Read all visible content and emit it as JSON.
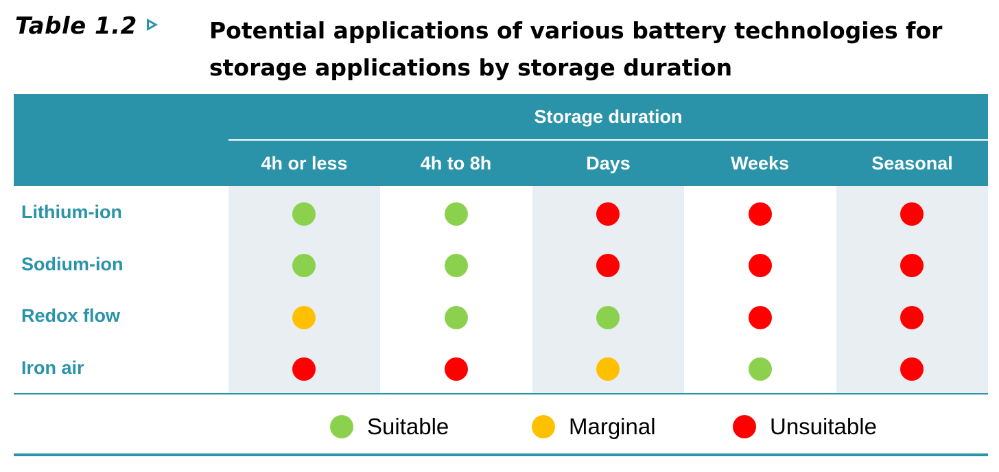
{
  "table_label": "Table 1.2",
  "title": "Potential applications of various battery technologies for storage applications by storage duration",
  "header": {
    "group": "Storage duration",
    "columns": [
      "4h or less",
      "4h to 8h",
      "Days",
      "Weeks",
      "Seasonal"
    ]
  },
  "rows": [
    {
      "label": "Lithium-ion",
      "ratings": [
        "Suitable",
        "Suitable",
        "Unsuitable",
        "Unsuitable",
        "Unsuitable"
      ]
    },
    {
      "label": "Sodium-ion",
      "ratings": [
        "Suitable",
        "Suitable",
        "Unsuitable",
        "Unsuitable",
        "Unsuitable"
      ]
    },
    {
      "label": "Redox flow",
      "ratings": [
        "Marginal",
        "Suitable",
        "Suitable",
        "Unsuitable",
        "Unsuitable"
      ]
    },
    {
      "label": "Iron air",
      "ratings": [
        "Unsuitable",
        "Unsuitable",
        "Marginal",
        "Suitable",
        "Unsuitable"
      ]
    }
  ],
  "legend": [
    {
      "label": "Suitable",
      "color": "#8cd14d"
    },
    {
      "label": "Marginal",
      "color": "#ffc000"
    },
    {
      "label": "Unsuitable",
      "color": "#ff0000"
    }
  ],
  "colors": {
    "accent": "#2a93a9",
    "suitable": "#8cd14d",
    "marginal": "#ffc000",
    "unsuitable": "#ff0000"
  }
}
